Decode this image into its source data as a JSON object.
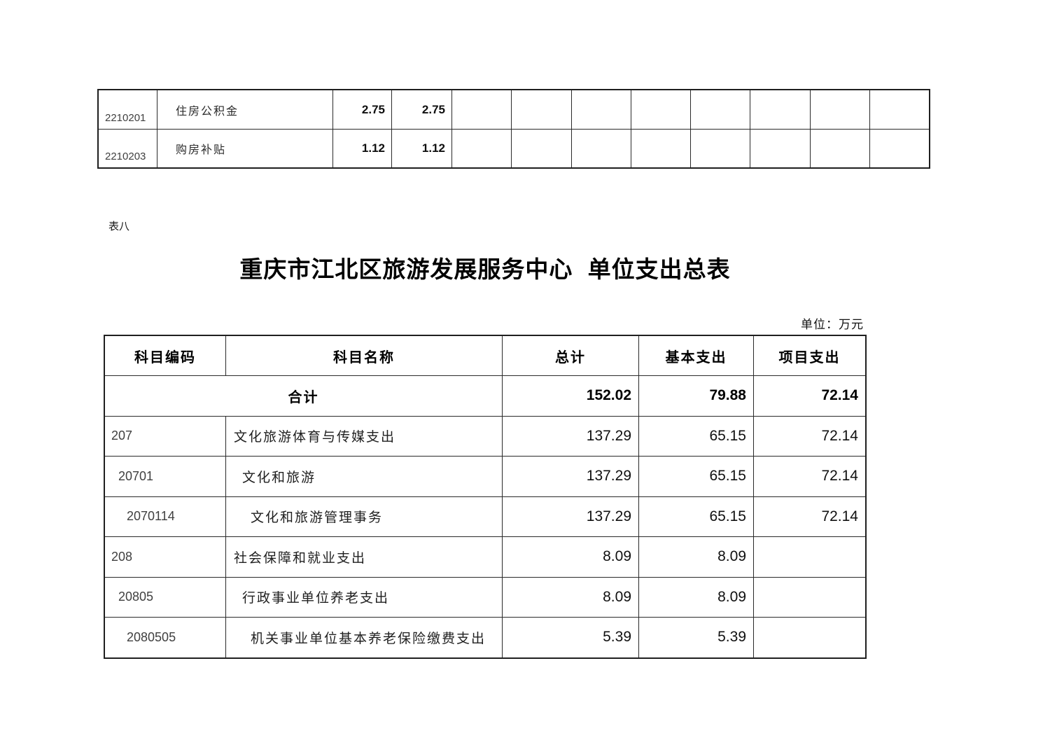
{
  "page": {
    "section_label": "表八",
    "title": "重庆市江北区旅游发展服务中心 单位支出总表",
    "unit_note": "单位：万元"
  },
  "continuation_table": {
    "rows": [
      {
        "code": "2210201",
        "name": "住房公积金",
        "total": "2.75",
        "basic": "2.75"
      },
      {
        "code": "2210203",
        "name": "购房补贴",
        "total": "1.12",
        "basic": "1.12"
      }
    ]
  },
  "expenditure_table": {
    "headers": {
      "code": "科目编码",
      "name": "科目名称",
      "total": "总计",
      "basic": "基本支出",
      "project": "项目支出"
    },
    "total_row": {
      "label": "合计",
      "total": "152.02",
      "basic": "79.88",
      "project": "72.14"
    },
    "rows": [
      {
        "code": "207",
        "name": "文化旅游体育与传媒支出",
        "total": "137.29",
        "basic": "65.15",
        "project": "72.14"
      },
      {
        "code": "20701",
        "name": "文化和旅游",
        "total": "137.29",
        "basic": "65.15",
        "project": "72.14"
      },
      {
        "code": "2070114",
        "name": "文化和旅游管理事务",
        "total": "137.29",
        "basic": "65.15",
        "project": "72.14"
      },
      {
        "code": "208",
        "name": "社会保障和就业支出",
        "total": "8.09",
        "basic": "8.09",
        "project": ""
      },
      {
        "code": "20805",
        "name": "行政事业单位养老支出",
        "total": "8.09",
        "basic": "8.09",
        "project": ""
      },
      {
        "code": "2080505",
        "name": "机关事业单位基本养老保险缴费支出",
        "total": "5.39",
        "basic": "5.39",
        "project": ""
      }
    ]
  }
}
